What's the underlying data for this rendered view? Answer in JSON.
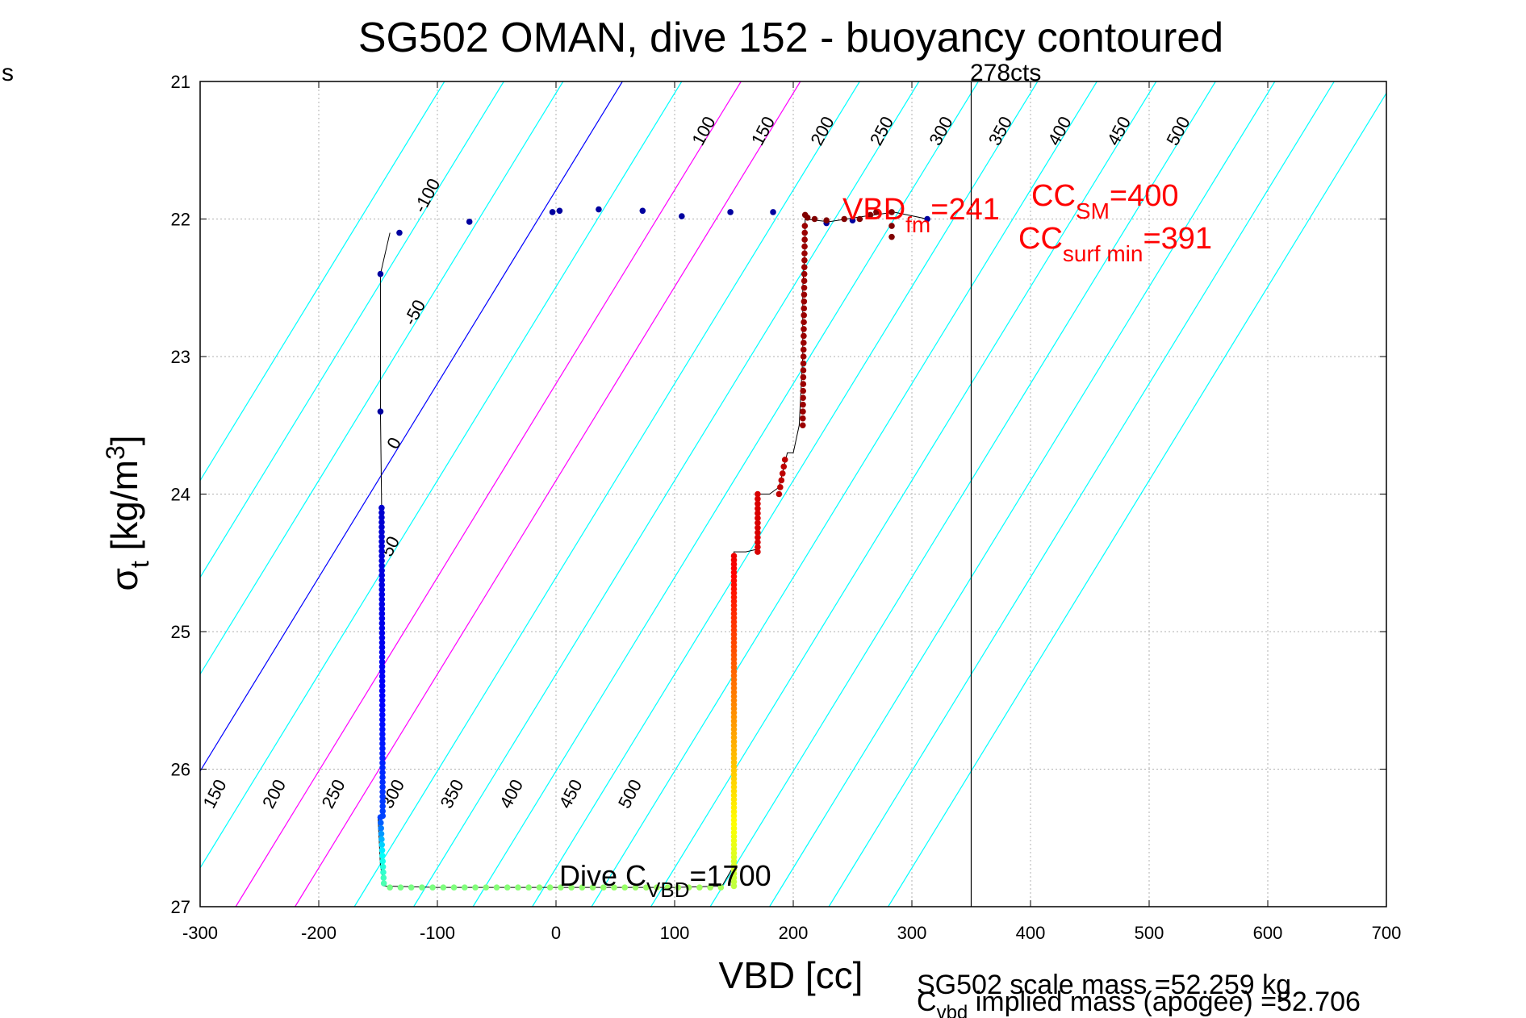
{
  "chart_data": {
    "type": "scatter",
    "title": "SG502 OMAN, dive 152 - buoyancy contoured",
    "xlabel": "VBD [cc]",
    "ylabel_main": "σ",
    "ylabel_sub": "t",
    "ylabel_unit_a": " [kg/m",
    "ylabel_unit_sup": "3",
    "ylabel_unit_b": "]",
    "edge_label": "s",
    "xlim": [
      -300,
      700
    ],
    "ylim": [
      27,
      21
    ],
    "y_reversed": true,
    "grid": true,
    "x_ticks": [
      -300,
      -200,
      -100,
      0,
      100,
      200,
      300,
      400,
      500,
      600,
      700
    ],
    "y_ticks": [
      21,
      22,
      23,
      24,
      25,
      26,
      27
    ],
    "x_tick_labels": [
      "-300",
      "-200",
      "-100",
      "0",
      "100",
      "200",
      "300",
      "400",
      "500",
      "600",
      "700"
    ],
    "y_tick_labels": [
      "21",
      "22",
      "23",
      "24",
      "25",
      "26",
      "27"
    ],
    "contour_slope": 71,
    "contour_shift_bottom": 240,
    "contours_top": [
      {
        "level": -150,
        "label": ""
      },
      {
        "level": -100,
        "label": "-100"
      },
      {
        "level": -50,
        "label": "-50"
      },
      {
        "level": 0,
        "label": "0"
      },
      {
        "level": 50,
        "label": "50"
      },
      {
        "level": 100,
        "label": "100"
      },
      {
        "level": 150,
        "label": "150"
      },
      {
        "level": 200,
        "label": "200"
      },
      {
        "level": 250,
        "label": "250"
      },
      {
        "level": 300,
        "label": "300"
      },
      {
        "level": 350,
        "label": "350"
      },
      {
        "level": 400,
        "label": "400"
      },
      {
        "level": 450,
        "label": "450"
      },
      {
        "level": 500,
        "label": "500"
      },
      {
        "level": 550,
        "label": ""
      },
      {
        "level": 600,
        "label": ""
      },
      {
        "level": 650,
        "label": ""
      }
    ],
    "contours_bottom": [
      {
        "level": 150,
        "label": "150"
      },
      {
        "level": 200,
        "label": "200"
      },
      {
        "level": 250,
        "label": "250"
      },
      {
        "level": 300,
        "label": "300"
      },
      {
        "level": 350,
        "label": "350"
      },
      {
        "level": 400,
        "label": "400"
      },
      {
        "level": 450,
        "label": "450"
      },
      {
        "level": 500,
        "label": "500"
      }
    ],
    "contour_colors": {
      "zero": "#0000ff",
      "mid": "#ff00ff",
      "other": "#00ffff"
    },
    "vertical_line": {
      "x": 350,
      "label": "278cts"
    },
    "dive_trace": [
      [
        -140,
        22.1
      ],
      [
        -148,
        22.4
      ],
      [
        -148,
        23.0
      ],
      [
        -148,
        23.4
      ],
      [
        -147,
        24.1
      ],
      [
        -147,
        24.5
      ],
      [
        -146,
        25.0
      ],
      [
        -146,
        25.5
      ],
      [
        -146,
        26.0
      ],
      [
        -145,
        26.35
      ],
      [
        -150,
        26.35
      ],
      [
        -148,
        26.7
      ],
      [
        -145,
        26.85
      ],
      [
        -100,
        26.86
      ],
      [
        -50,
        26.86
      ],
      [
        0,
        26.86
      ],
      [
        50,
        26.86
      ],
      [
        100,
        26.86
      ],
      [
        140,
        26.85
      ],
      [
        150,
        26.7
      ],
      [
        150,
        26.0
      ],
      [
        150,
        25.0
      ],
      [
        150,
        24.42
      ],
      [
        160,
        24.42
      ],
      [
        170,
        24.4
      ],
      [
        170,
        24.0
      ],
      [
        180,
        24.0
      ],
      [
        188,
        23.95
      ],
      [
        195,
        23.7
      ],
      [
        200,
        23.7
      ],
      [
        205,
        23.5
      ],
      [
        208,
        23.0
      ],
      [
        208,
        22.5
      ],
      [
        210,
        22.2
      ],
      [
        210,
        22.0
      ],
      [
        230,
        22.02
      ],
      [
        260,
        21.98
      ],
      [
        285,
        21.95
      ],
      [
        313,
        22.0
      ]
    ],
    "descent_points": [
      [
        -132,
        22.1
      ],
      [
        -73,
        22.02
      ],
      [
        -3,
        21.95
      ],
      [
        3,
        21.94
      ],
      [
        36,
        21.93
      ],
      [
        73,
        21.94
      ],
      [
        106,
        21.98
      ],
      [
        147,
        21.95
      ],
      [
        183,
        21.95
      ],
      [
        228,
        22.03
      ],
      [
        250,
        22.01
      ],
      [
        313,
        22.0
      ],
      [
        -148,
        22.4
      ],
      [
        -148,
        23.4
      ]
    ],
    "top_points": [
      [
        210,
        21.97
      ],
      [
        212,
        21.99
      ],
      [
        218,
        22.0
      ],
      [
        228,
        22.01
      ],
      [
        243,
        22.0
      ],
      [
        256,
        22.0
      ],
      [
        265,
        21.97
      ],
      [
        270,
        21.95
      ],
      [
        283,
        21.95
      ],
      [
        283,
        22.05
      ],
      [
        283,
        22.13
      ]
    ],
    "color_scale": [
      "#00008f",
      "#0000ff",
      "#00ffff",
      "#7fff7f",
      "#ffff00",
      "#ff8000",
      "#ff0000",
      "#800000"
    ],
    "annotations": {
      "vbd_fm": {
        "main": "VBD",
        "sub": "fm",
        "value": "=241"
      },
      "cc_sm": {
        "main": "CC",
        "sub": "SM",
        "value": "=400"
      },
      "cc_surf_min": {
        "main": "CC",
        "sub": "surf min",
        "value": "=391"
      },
      "dive_cvbd": {
        "main": "Dive C",
        "sub": "VBD",
        "value": "=1700"
      },
      "scale_mass": "SG502 scale mass =52.259 kg",
      "implied_mass_main": "C",
      "implied_mass_sub": "vbd",
      "implied_mass_value": " implied mass (apogee) =52.706"
    },
    "colors": {
      "trace_line": "#000000",
      "annotation_red": "#ff0000",
      "grid": "#b0b0b0"
    }
  }
}
